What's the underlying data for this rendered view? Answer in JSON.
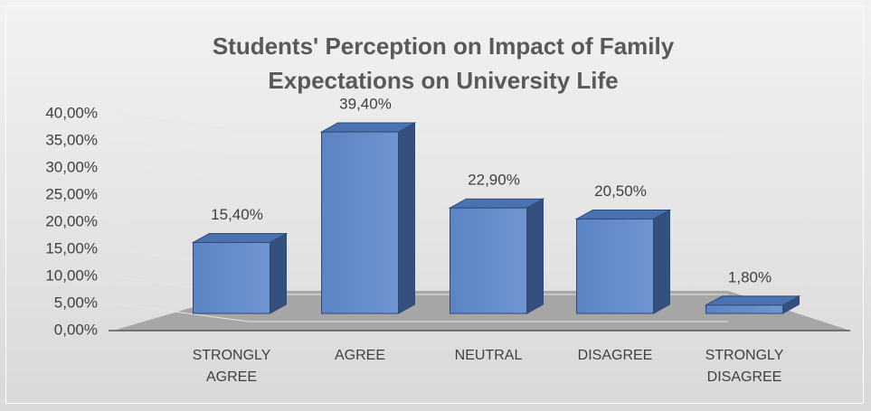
{
  "chart_data": {
    "type": "bar3d",
    "title": "Students' Perception on Impact of Family Expectations on University Life",
    "categories": [
      "STRONGLY AGREE",
      "AGREE",
      "NEUTRAL",
      "DISAGREE",
      "STRONGLY DISAGREE"
    ],
    "values": [
      15.4,
      39.4,
      22.9,
      20.5,
      1.8
    ],
    "value_labels": [
      "15,40%",
      "39,40%",
      "22,90%",
      "20,50%",
      "1,80%"
    ],
    "color": "#5b84c4",
    "ylim": [
      0,
      40
    ],
    "yticks": [
      {
        "value": 0,
        "label": "0,00%"
      },
      {
        "value": 5,
        "label": "5,00%"
      },
      {
        "value": 10,
        "label": "10,00%"
      },
      {
        "value": 15,
        "label": "15,00%"
      },
      {
        "value": 20,
        "label": "20,00%"
      },
      {
        "value": 25,
        "label": "25,00%"
      },
      {
        "value": 30,
        "label": "30,00%"
      },
      {
        "value": 35,
        "label": "35,00%"
      },
      {
        "value": 40,
        "label": "40,00%"
      }
    ],
    "grid": true
  }
}
